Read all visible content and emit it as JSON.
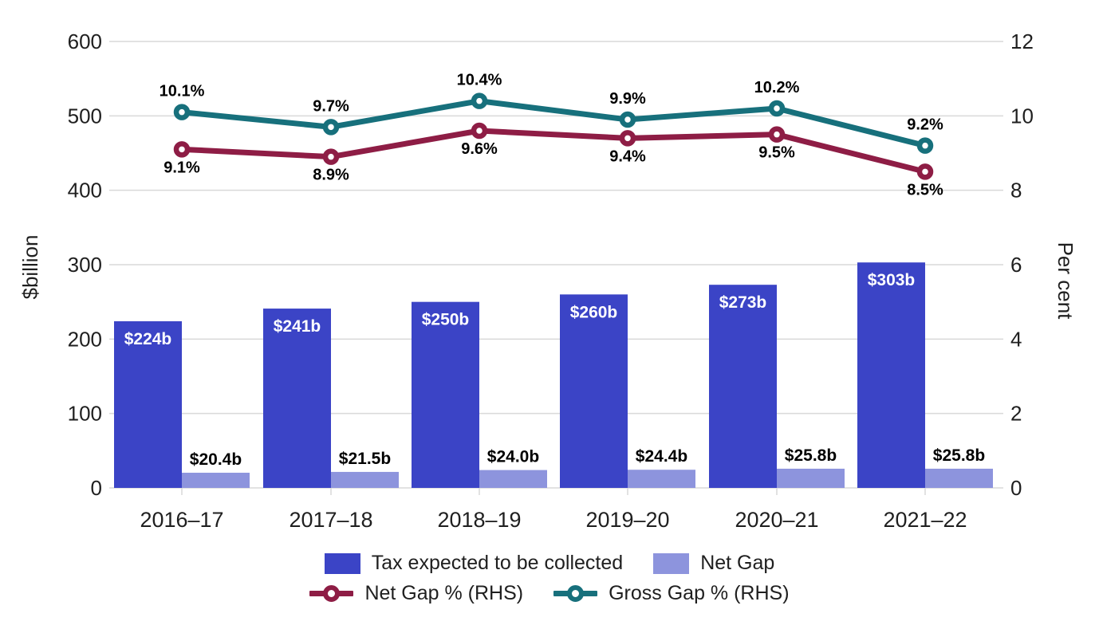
{
  "chart_data": {
    "type": "combo-bar-line",
    "title": "",
    "categories": [
      "2016–17",
      "2017–18",
      "2018–19",
      "2019–20",
      "2020–21",
      "2021–22"
    ],
    "left_axis": {
      "label": "$billion",
      "range": [
        0,
        600
      ],
      "ticks": [
        0,
        100,
        200,
        300,
        400,
        500,
        600
      ]
    },
    "right_axis": {
      "label": "Per cent",
      "range": [
        0,
        12
      ],
      "ticks": [
        0,
        2,
        4,
        6,
        8,
        10,
        12
      ]
    },
    "grid": true,
    "legend_position": "bottom",
    "series": [
      {
        "name": "Tax expected to be collected",
        "type": "bar",
        "axis": "left",
        "color": "#3b44c6",
        "values": [
          224,
          241,
          250,
          260,
          273,
          303
        ],
        "labels": [
          "$224b",
          "$241b",
          "$250b",
          "$260b",
          "$273b",
          "$303b"
        ],
        "label_color": "#ffffff",
        "label_placement": "inside-top"
      },
      {
        "name": "Net Gap",
        "type": "bar",
        "axis": "left",
        "color": "#8d94dd",
        "values": [
          20.4,
          21.5,
          24.0,
          24.4,
          25.8,
          25.8
        ],
        "labels": [
          "$20.4b",
          "$21.5b",
          "$24.0b",
          "$24.4b",
          "$25.8b",
          "$25.8b"
        ],
        "label_color": "#000000",
        "label_placement": "above"
      },
      {
        "name": "Net Gap % (RHS)",
        "type": "line",
        "axis": "right",
        "color": "#8e1d45",
        "values": [
          9.1,
          8.9,
          9.6,
          9.4,
          9.5,
          8.5
        ],
        "labels": [
          "9.1%",
          "8.9%",
          "9.6%",
          "9.4%",
          "9.5%",
          "8.5%"
        ],
        "label_color": "#000000",
        "label_placement": "below"
      },
      {
        "name": "Gross Gap % (RHS)",
        "type": "line",
        "axis": "right",
        "color": "#17707c",
        "values": [
          10.1,
          9.7,
          10.4,
          9.9,
          10.2,
          9.2
        ],
        "labels": [
          "10.1%",
          "9.7%",
          "10.4%",
          "9.9%",
          "10.2%",
          "9.2%"
        ],
        "label_color": "#000000",
        "label_placement": "above"
      }
    ],
    "colors": {
      "gridline": "#d9d9d9",
      "tick_text": "#1f1f1f",
      "axis_title_text": "#1f1f1f"
    }
  }
}
